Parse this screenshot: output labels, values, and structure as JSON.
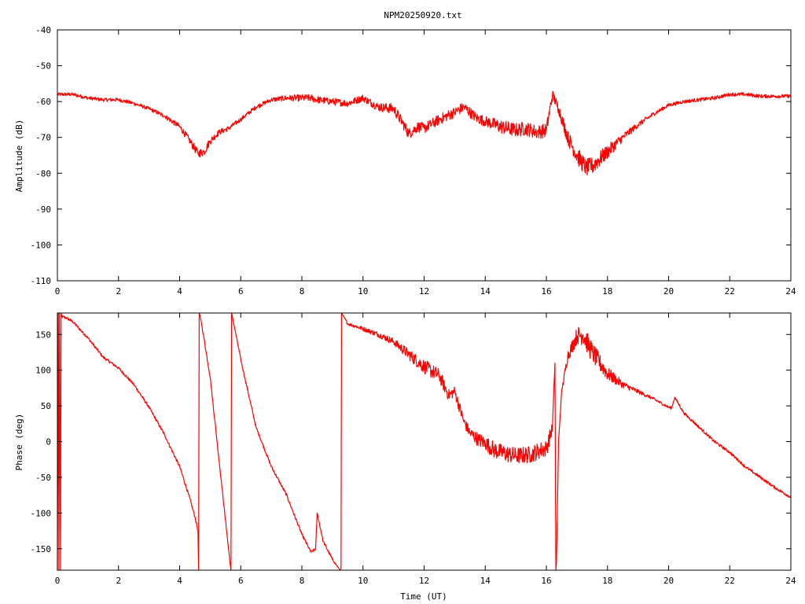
{
  "title": "NPM20250920.txt",
  "colors": {
    "series": "#ff0000",
    "axes": "#000000",
    "background": "#ffffff"
  },
  "chart_data": [
    {
      "type": "line",
      "ylabel": "Amplitude (dB)",
      "xlabel": "",
      "xlim": [
        0,
        24
      ],
      "ylim": [
        -110,
        -40
      ],
      "xticks": [
        "0",
        "2",
        "4",
        "6",
        "8",
        "10",
        "12",
        "14",
        "16",
        "18",
        "20",
        "22",
        "24"
      ],
      "yticks": [
        "-40",
        "-50",
        "-60",
        "-70",
        "-80",
        "-90",
        "-100",
        "-110"
      ],
      "grid": false,
      "series": [
        {
          "x": [
            0,
            0.5,
            1,
            1.5,
            2,
            2.5,
            3,
            3.5,
            4,
            4.3,
            4.6,
            4.8,
            5,
            5.3,
            5.6,
            6,
            6.5,
            7,
            7.5,
            8,
            8.3,
            8.5,
            9,
            9.5,
            10,
            10.5,
            11,
            11.3,
            11.5,
            11.8,
            12,
            12.5,
            13,
            13.3,
            13.7,
            14,
            14.5,
            15,
            15.3,
            15.7,
            16,
            16.2,
            16.4,
            16.7,
            17,
            17.3,
            17.5,
            18,
            18.5,
            19,
            19.5,
            20,
            20.5,
            21,
            21.5,
            22,
            22.5,
            23,
            23.5,
            24
          ],
          "y": [
            -58,
            -58,
            -59,
            -59.5,
            -59.5,
            -60.5,
            -62,
            -64,
            -67,
            -70.5,
            -74.5,
            -74,
            -71,
            -68.5,
            -67.5,
            -65,
            -61.5,
            -59.5,
            -59,
            -59,
            -59,
            -59.5,
            -60,
            -60.5,
            -59,
            -61.5,
            -62,
            -66,
            -69,
            -67,
            -67.5,
            -65,
            -63,
            -61.5,
            -64.5,
            -65.5,
            -67,
            -68,
            -67.5,
            -68.5,
            -68,
            -58,
            -62,
            -70,
            -75,
            -78.5,
            -78,
            -74,
            -70,
            -66.5,
            -63.5,
            -61,
            -60,
            -59.5,
            -59,
            -58,
            -58,
            -58.5,
            -58.5,
            -58.5
          ],
          "noise": [
            0.5,
            0.5,
            0.5,
            0.5,
            0.5,
            0.5,
            0.5,
            0.6,
            0.8,
            1,
            1.2,
            1.2,
            1,
            0.8,
            0.7,
            0.6,
            0.6,
            0.6,
            0.8,
            1,
            1,
            1,
            1,
            1,
            1,
            1.2,
            1.5,
            1.5,
            1.5,
            1.5,
            1.5,
            1.5,
            1.5,
            1.5,
            1.5,
            1.5,
            2,
            2,
            2,
            2,
            2,
            1.5,
            1.5,
            2,
            2.5,
            2.5,
            2.5,
            2,
            1.2,
            0.8,
            0.6,
            0.5,
            0.5,
            0.5,
            0.5,
            0.5,
            0.5,
            0.5,
            0.5,
            0.5
          ]
        }
      ]
    },
    {
      "type": "line",
      "ylabel": "Phase (deg)",
      "xlabel": "Time (UT)",
      "xlim": [
        0,
        24
      ],
      "ylim": [
        -180,
        180
      ],
      "xticks": [
        "0",
        "2",
        "4",
        "6",
        "8",
        "10",
        "12",
        "14",
        "16",
        "18",
        "20",
        "22",
        "24"
      ],
      "yticks": [
        "150",
        "100",
        "50",
        "0",
        "-50",
        "-100",
        "-150"
      ],
      "grid": false,
      "series": [
        {
          "x": [
            0,
            0.03,
            0.05,
            0.07,
            0.1,
            0.12,
            0.15,
            0.3,
            0.5,
            1,
            1.5,
            2,
            2.5,
            3,
            3.5,
            4,
            4.3,
            4.5,
            4.6,
            4.62,
            4.64,
            4.7,
            5,
            5.3,
            5.5,
            5.65,
            5.68,
            5.7,
            5.75,
            6,
            6.5,
            7,
            7.5,
            8,
            8.3,
            8.45,
            8.5,
            8.7,
            9,
            9.25,
            9.28,
            9.3,
            9.5,
            10,
            10.5,
            11,
            11.5,
            12,
            12.5,
            12.8,
            13,
            13.3,
            13.5,
            13.8,
            14,
            14.3,
            14.5,
            14.8,
            15,
            15.5,
            15.8,
            16,
            16.2,
            16.28,
            16.31,
            16.33,
            16.4,
            16.5,
            16.7,
            17,
            17.2,
            17.5,
            18,
            18.5,
            19,
            19.5,
            20,
            20.1,
            20.2,
            20.5,
            21,
            21.5,
            22,
            22.5,
            23,
            23.5,
            24
          ],
          "y": [
            -180,
            180,
            -180,
            180,
            -180,
            180,
            175,
            173,
            168,
            145,
            118,
            103,
            80,
            48,
            10,
            -35,
            -75,
            -105,
            -125,
            -180,
            180,
            170,
            90,
            -30,
            -110,
            -170,
            -180,
            180,
            170,
            115,
            20,
            -35,
            -75,
            -130,
            -155,
            -150,
            -100,
            -140,
            -165,
            -180,
            -178,
            180,
            165,
            158,
            150,
            140,
            122,
            105,
            92,
            65,
            70,
            28,
            12,
            2,
            -2,
            -12,
            -15,
            -18,
            -20,
            -18,
            -12,
            -10,
            20,
            110,
            -180,
            -170,
            0,
            70,
            120,
            148,
            150,
            125,
            95,
            80,
            70,
            60,
            48,
            47,
            62,
            40,
            20,
            0,
            -15,
            -35,
            -50,
            -65,
            -78
          ],
          "noise": [
            0,
            0,
            0,
            0,
            0,
            0,
            2,
            2,
            2,
            2,
            2,
            2,
            2,
            2,
            2,
            2,
            2,
            2,
            2,
            0,
            0,
            2,
            2,
            2,
            2,
            2,
            0,
            0,
            2,
            2,
            2,
            2,
            2,
            2,
            2,
            2,
            2,
            2,
            2,
            0,
            0,
            0,
            2,
            3,
            4,
            5,
            8,
            10,
            10,
            8,
            8,
            8,
            8,
            10,
            10,
            12,
            12,
            12,
            12,
            12,
            12,
            12,
            8,
            0,
            0,
            0,
            0,
            3,
            8,
            12,
            15,
            15,
            10,
            5,
            3,
            2,
            2,
            2,
            2,
            2,
            2,
            2,
            2,
            2,
            2,
            2,
            2
          ]
        }
      ]
    }
  ]
}
